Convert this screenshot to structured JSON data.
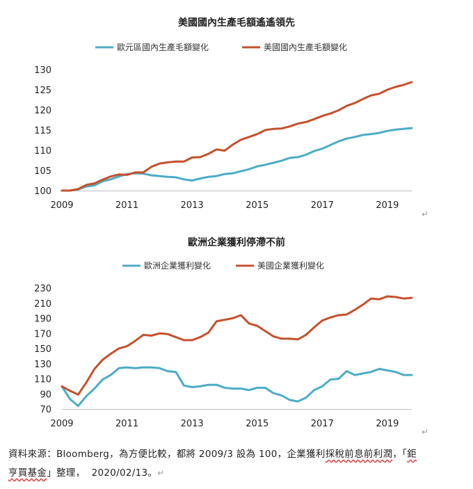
{
  "colors": {
    "blue": "#4bacc6",
    "orange": "#c5502b",
    "axis": "#bfbfbf",
    "text": "#222222"
  },
  "return_mark": "↵",
  "footnote": {
    "part1": "資料來源：Bloomberg，為方便比較，都將 2009/3 設為 100，企業獲利",
    "part2": "採稅前息前利潤",
    "part3": "，「",
    "part4": "鉅",
    "part5": "亨買基金",
    "part6": "」整理，  2020/02/13。",
    "part7": "↵"
  },
  "chart_data": [
    {
      "type": "line",
      "title": "美國國內生產毛額遙遙領先",
      "ylim": [
        100,
        130
      ],
      "yticks": [
        100,
        105,
        110,
        115,
        120,
        125,
        130
      ],
      "xlim": [
        2009,
        2019.75
      ],
      "xticks": [
        2009,
        2011,
        2013,
        2015,
        2017,
        2019
      ],
      "legend_position": "top",
      "series": [
        {
          "name": "歐元區國內生產毛額變化",
          "color": "#4bacc6",
          "x": [
            2009,
            2009.25,
            2009.5,
            2009.75,
            2010,
            2010.25,
            2010.5,
            2010.75,
            2011,
            2011.25,
            2011.5,
            2011.75,
            2012,
            2012.25,
            2012.5,
            2012.75,
            2013,
            2013.25,
            2013.5,
            2013.75,
            2014,
            2014.25,
            2014.5,
            2014.75,
            2015,
            2015.25,
            2015.5,
            2015.75,
            2016,
            2016.25,
            2016.5,
            2016.75,
            2017,
            2017.25,
            2017.5,
            2017.75,
            2018,
            2018.25,
            2018.5,
            2018.75,
            2019,
            2019.25,
            2019.5,
            2019.75
          ],
          "values": [
            100,
            100,
            100.3,
            101,
            101.3,
            102.3,
            102.8,
            103.5,
            104.1,
            104.3,
            104.2,
            103.8,
            103.6,
            103.4,
            103.3,
            102.8,
            102.5,
            103,
            103.4,
            103.6,
            104.1,
            104.3,
            104.8,
            105.3,
            106,
            106.4,
            106.9,
            107.4,
            108.1,
            108.3,
            108.9,
            109.8,
            110.4,
            111.3,
            112.2,
            112.9,
            113.3,
            113.8,
            114,
            114.3,
            114.8,
            115.1,
            115.3,
            115.5
          ]
        },
        {
          "name": "美國國內生產毛額變化",
          "color": "#c5502b",
          "x": [
            2009,
            2009.25,
            2009.5,
            2009.75,
            2010,
            2010.25,
            2010.5,
            2010.75,
            2011,
            2011.25,
            2011.5,
            2011.75,
            2012,
            2012.25,
            2012.5,
            2012.75,
            2013,
            2013.25,
            2013.5,
            2013.75,
            2014,
            2014.25,
            2014.5,
            2014.75,
            2015,
            2015.25,
            2015.5,
            2015.75,
            2016,
            2016.25,
            2016.5,
            2016.75,
            2017,
            2017.25,
            2017.5,
            2017.75,
            2018,
            2018.25,
            2018.5,
            2018.75,
            2019,
            2019.25,
            2019.5,
            2019.75
          ],
          "values": [
            100,
            100,
            100.4,
            101.4,
            101.8,
            102.7,
            103.5,
            104,
            103.9,
            104.5,
            104.5,
            105.9,
            106.7,
            107,
            107.2,
            107.2,
            108.2,
            108.3,
            109.1,
            110.2,
            109.9,
            111.4,
            112.6,
            113.3,
            114,
            115,
            115.3,
            115.4,
            115.9,
            116.6,
            117,
            117.7,
            118.5,
            119.1,
            119.9,
            121,
            121.7,
            122.7,
            123.6,
            124,
            125,
            125.7,
            126.2,
            126.9
          ]
        }
      ]
    },
    {
      "type": "line",
      "title": "歐洲企業獲利停滯不前",
      "ylim": [
        70,
        230
      ],
      "yticks": [
        70,
        90,
        110,
        130,
        150,
        170,
        190,
        210,
        230
      ],
      "xlim": [
        2009,
        2019.75
      ],
      "xticks": [
        2009,
        2011,
        2013,
        2015,
        2017,
        2019
      ],
      "legend_position": "top",
      "series": [
        {
          "name": "歐洲企業獲利變化",
          "color": "#4bacc6",
          "x": [
            2009,
            2009.25,
            2009.5,
            2009.75,
            2010,
            2010.25,
            2010.5,
            2010.75,
            2011,
            2011.25,
            2011.5,
            2011.75,
            2012,
            2012.25,
            2012.5,
            2012.75,
            2013,
            2013.25,
            2013.5,
            2013.75,
            2014,
            2014.25,
            2014.5,
            2014.75,
            2015,
            2015.25,
            2015.5,
            2015.75,
            2016,
            2016.25,
            2016.5,
            2016.75,
            2017,
            2017.25,
            2017.5,
            2017.75,
            2018,
            2018.25,
            2018.5,
            2018.75,
            2019,
            2019.25,
            2019.5,
            2019.75
          ],
          "values": [
            100,
            83,
            74,
            87,
            97,
            109,
            115,
            124,
            125,
            124,
            125,
            125,
            124,
            120,
            119,
            101,
            99,
            100,
            102,
            102,
            98,
            97,
            97,
            95,
            98,
            98,
            91,
            88,
            82,
            80,
            85,
            95,
            100,
            109,
            110,
            120,
            115,
            117,
            119,
            123,
            121,
            119,
            115,
            115
          ]
        },
        {
          "name": "美國企業獲利變化",
          "color": "#c5502b",
          "x": [
            2009,
            2009.25,
            2009.5,
            2009.75,
            2010,
            2010.25,
            2010.5,
            2010.75,
            2011,
            2011.25,
            2011.5,
            2011.75,
            2012,
            2012.25,
            2012.5,
            2012.75,
            2013,
            2013.25,
            2013.5,
            2013.75,
            2014,
            2014.25,
            2014.5,
            2014.75,
            2015,
            2015.25,
            2015.5,
            2015.75,
            2016,
            2016.25,
            2016.5,
            2016.75,
            2017,
            2017.25,
            2017.5,
            2017.75,
            2018,
            2018.25,
            2018.5,
            2018.75,
            2019,
            2019.25,
            2019.5,
            2019.75
          ],
          "values": [
            100,
            94,
            89,
            105,
            123,
            135,
            143,
            150,
            153,
            160,
            168,
            167,
            170,
            169,
            165,
            161,
            161,
            165,
            171,
            186,
            188,
            190,
            194,
            183,
            180,
            173,
            166,
            163,
            163,
            162,
            168,
            178,
            187,
            191,
            194,
            195,
            201,
            208,
            216,
            215,
            219,
            218,
            216,
            217
          ]
        }
      ]
    }
  ]
}
